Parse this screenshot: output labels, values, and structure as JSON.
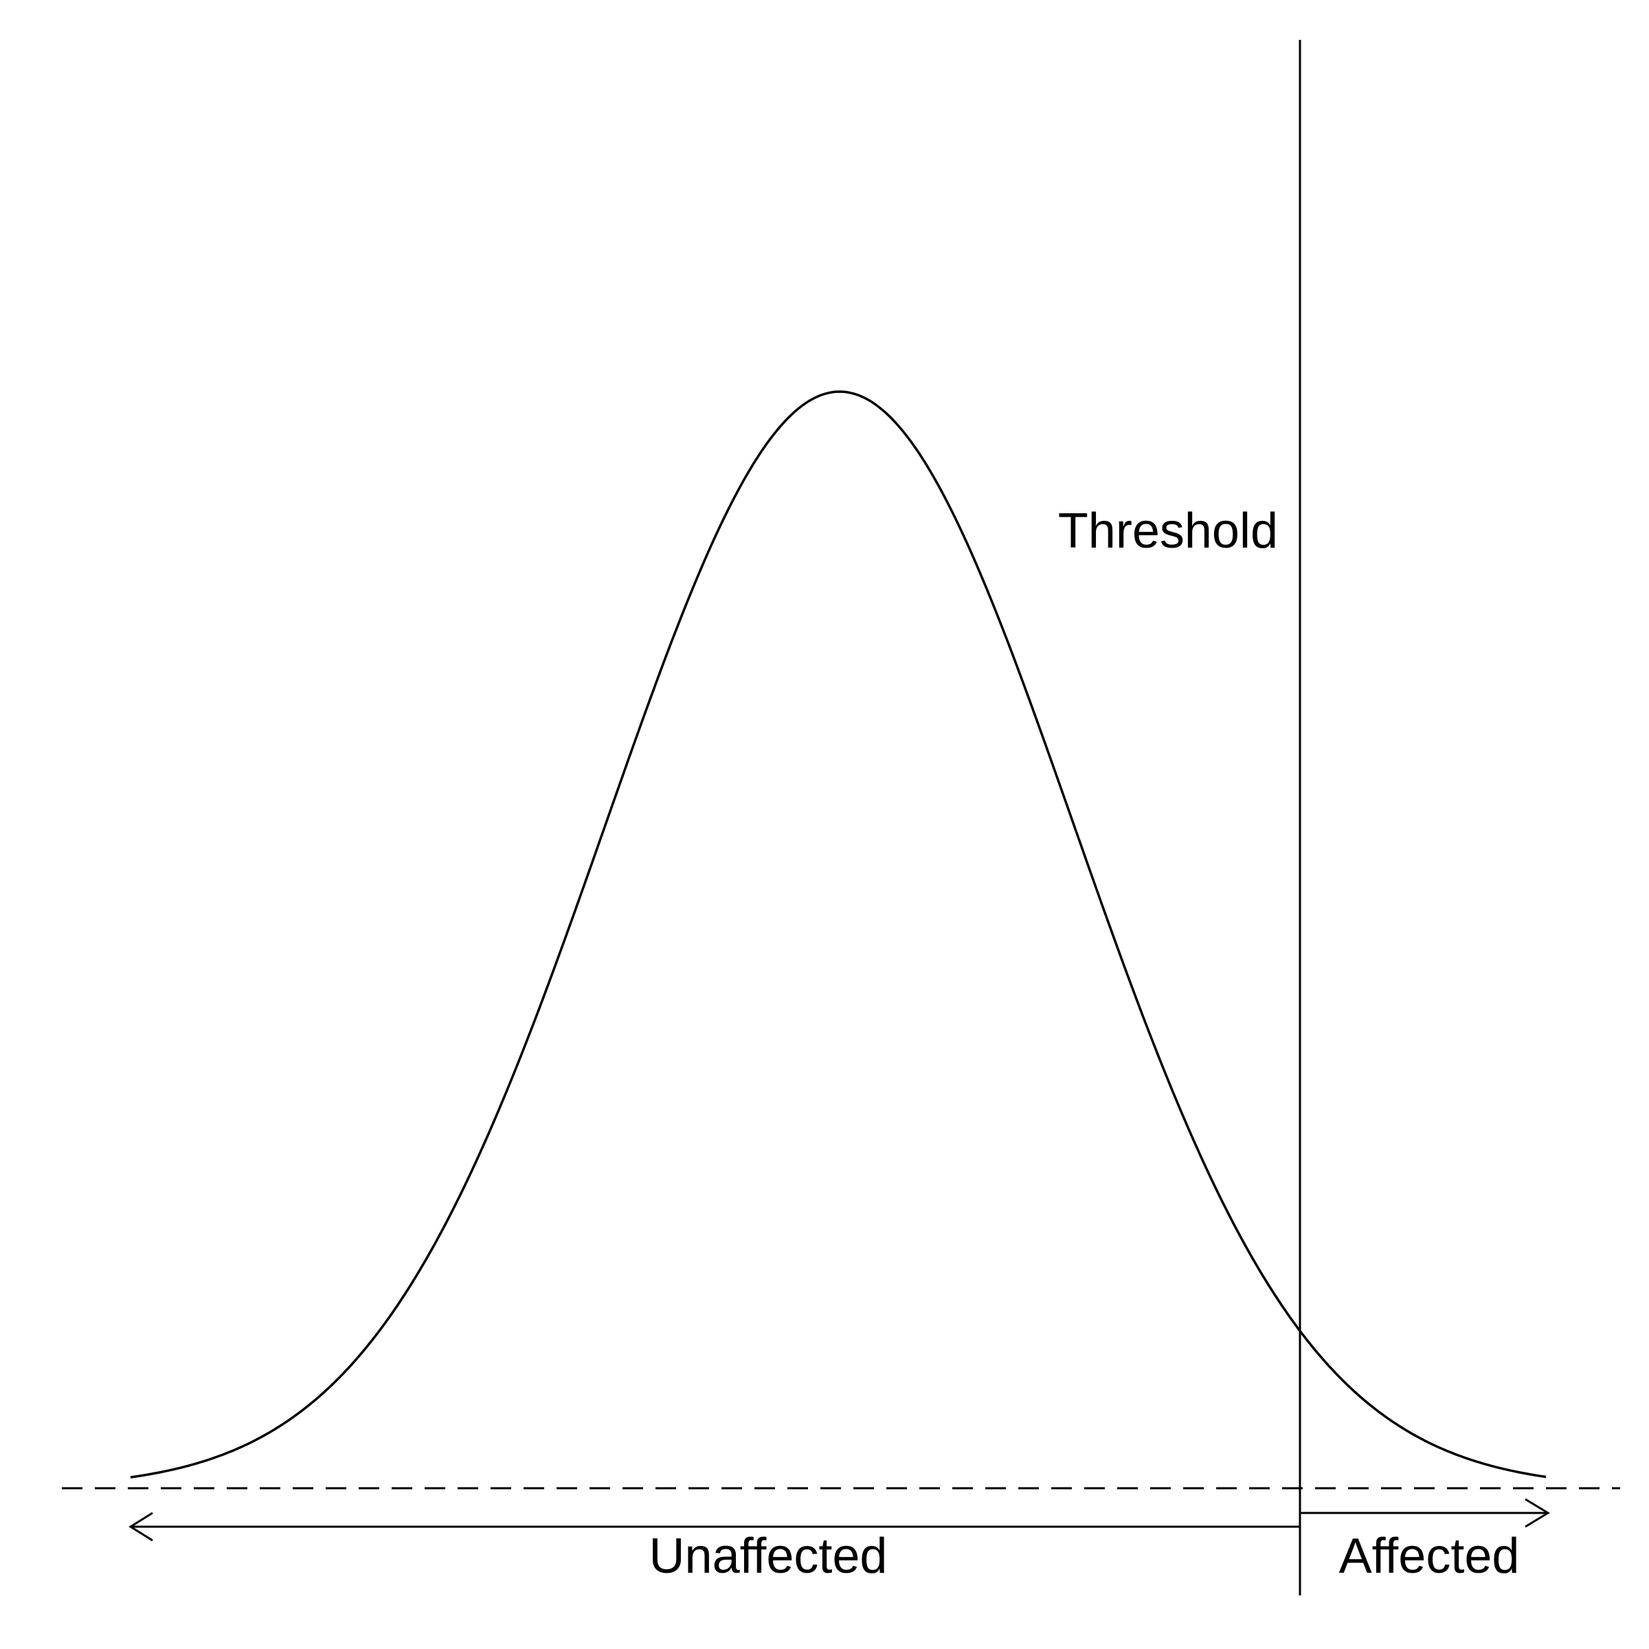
{
  "diagram": {
    "threshold_label": "Threshold",
    "left_region_label": "Unaffected",
    "right_region_label": "Affected",
    "line_color": "#000000",
    "background_color": "#ffffff",
    "curve": "normal distribution (bell curve)",
    "threshold_side": "right tail",
    "baseline_style": "dashed"
  }
}
